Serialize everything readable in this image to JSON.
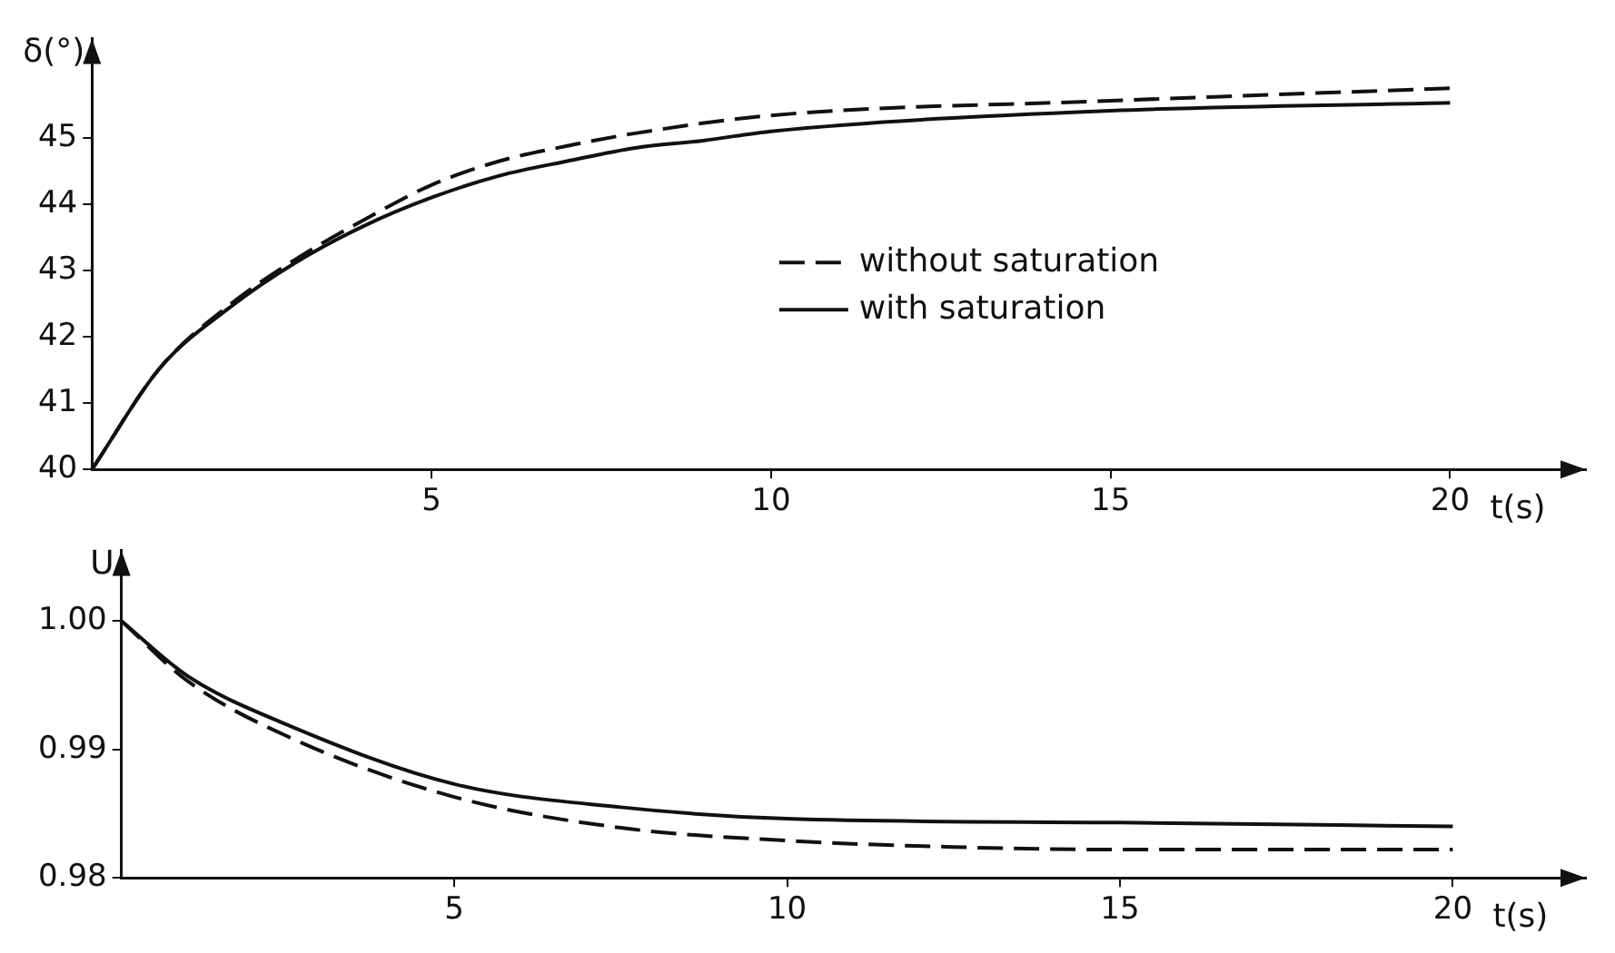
{
  "chart_data": [
    {
      "type": "line",
      "ylabel": "δ(°)",
      "xlabel": "t(s)",
      "xlim": [
        0,
        22
      ],
      "ylim": [
        40,
        46.5
      ],
      "xticks": [
        5,
        10,
        15,
        20
      ],
      "yticks": [
        40,
        41,
        42,
        43,
        44,
        45
      ],
      "grid": false,
      "legend": "right",
      "marker": "none",
      "series": [
        {
          "name": "without saturation",
          "color": "#111111",
          "line_style": "dashed",
          "x": [
            0,
            1,
            2,
            3,
            4,
            5,
            6,
            7,
            8,
            10,
            15,
            20
          ],
          "values": [
            40,
            41.53,
            42.46,
            43.17,
            43.76,
            44.29,
            44.65,
            44.88,
            45.07,
            45.34,
            45.56,
            45.75
          ]
        },
        {
          "name": "with saturation",
          "color": "#111111",
          "line_style": "solid",
          "x": [
            0,
            1,
            2,
            3,
            4,
            5,
            6,
            7,
            8,
            9,
            10,
            15,
            20
          ],
          "values": [
            40,
            41.53,
            42.42,
            43.12,
            43.67,
            44.1,
            44.43,
            44.65,
            44.85,
            44.96,
            45.1,
            45.41,
            45.53
          ]
        }
      ]
    },
    {
      "type": "line",
      "ylabel": "U",
      "xlabel": "t(s)",
      "xlim": [
        0,
        22
      ],
      "ylim": [
        0.98,
        1.0055
      ],
      "xticks": [
        5,
        10,
        15,
        20
      ],
      "yticks": [
        {
          "value": 0.98,
          "label": "0.98"
        },
        {
          "value": 0.99,
          "label": "0.99"
        },
        {
          "value": 1,
          "label": "1.00"
        }
      ],
      "grid": false,
      "legend": false,
      "marker": "none",
      "series": [
        {
          "color": "#111111",
          "line_style": "dashed",
          "x": [
            0,
            1,
            2.5,
            5,
            7.5,
            10,
            12.5,
            15,
            20
          ],
          "values": [
            1,
            0.9953,
            0.991,
            0.9863,
            0.9839,
            0.9829,
            0.9824,
            0.9822,
            0.9822
          ]
        },
        {
          "color": "#111111",
          "line_style": "solid",
          "x": [
            0,
            1,
            2.5,
            5,
            7.5,
            10,
            15,
            20
          ],
          "values": [
            1,
            0.9957,
            0.9919,
            0.9873,
            0.9855,
            0.9846,
            0.9843,
            0.984
          ]
        }
      ]
    }
  ]
}
